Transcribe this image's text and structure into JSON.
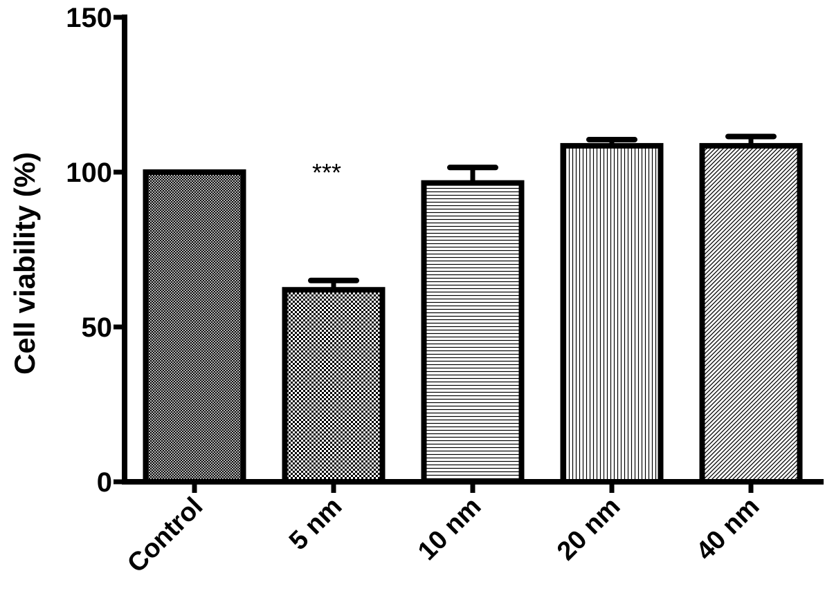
{
  "chart_data": {
    "type": "bar",
    "title": "",
    "xlabel": "",
    "ylabel": "Cell viability (%)",
    "ylim": [
      0,
      150
    ],
    "yticks": [
      0,
      50,
      100,
      150
    ],
    "ytick_labels": [
      "0",
      "50",
      "100",
      "150"
    ],
    "categories": [
      "Control",
      "5 nm",
      "10 nm",
      "20 nm",
      "40 nm"
    ],
    "values": [
      100,
      62,
      96.5,
      108.5,
      108.5
    ],
    "errors": [
      0,
      3,
      5,
      2,
      3
    ],
    "fill_patterns": [
      "fine-crosshatch",
      "checkerboard",
      "horizontal-lines",
      "vertical-lines",
      "diagonal-lines"
    ],
    "annotations": [
      {
        "category": "5 nm",
        "text": "***"
      }
    ],
    "grid": false,
    "legend": "none",
    "colors": {
      "bar_stroke": "#000000",
      "pattern": "#000000",
      "background": "#ffffff"
    }
  }
}
